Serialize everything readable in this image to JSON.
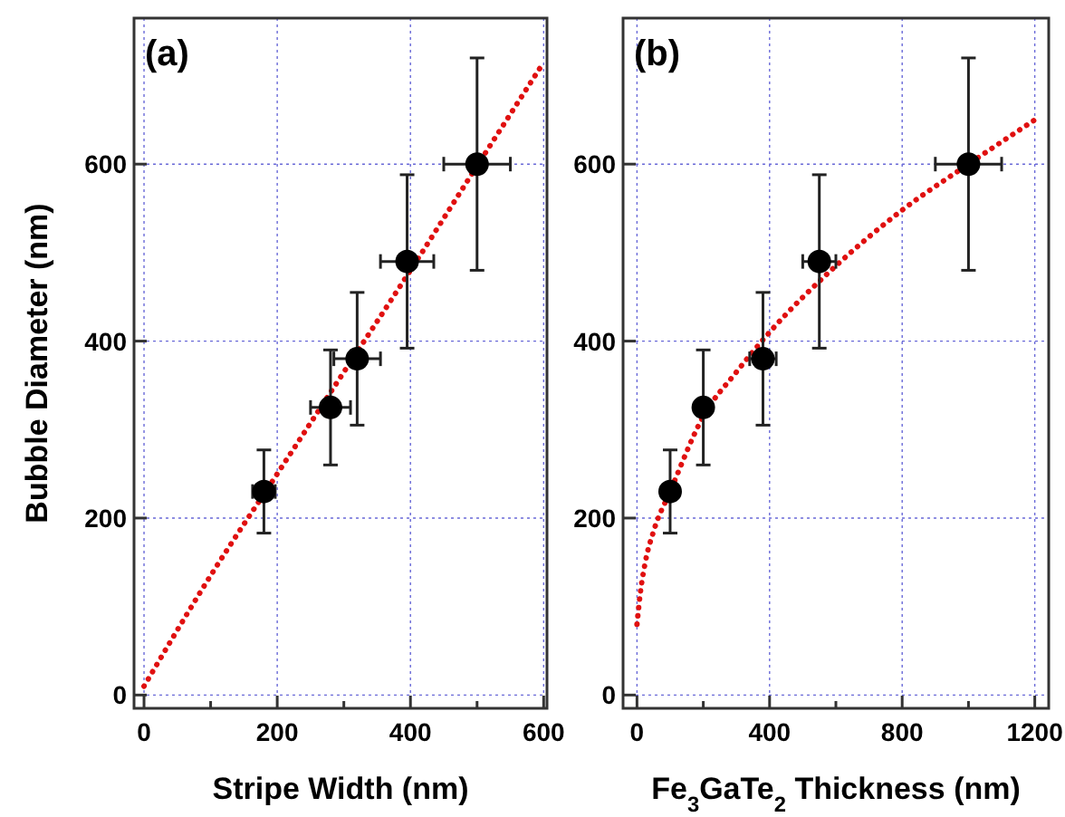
{
  "chart_data": [
    {
      "type": "scatter",
      "title": "(a)",
      "xlabel": "Stripe Width (nm)",
      "ylabel": "Bubble Diameter (nm)",
      "xlim": [
        -15,
        605
      ],
      "ylim": [
        -15,
        765
      ],
      "xticks": [
        0,
        {
          "value": 100,
          "label": null
        },
        200,
        {
          "value": 300,
          "label": null
        },
        400,
        {
          "value": 500,
          "label": null
        },
        600
      ],
      "yticks": [
        0,
        200,
        400,
        600
      ],
      "grid": true,
      "series": [
        {
          "color": "#000000",
          "marker": "circle",
          "x": [
            180,
            280,
            320,
            395,
            500
          ],
          "values": [
            230,
            325,
            380,
            490,
            600
          ],
          "errors": [
            47,
            65,
            75,
            98,
            120
          ],
          "xerrors": [
            17,
            30,
            35,
            40,
            50
          ]
        },
        {
          "type": "line",
          "color": "#e01010",
          "marker": "none",
          "line_style": "dotted",
          "x": [
            0,
            100,
            200,
            300,
            400,
            500,
            600
          ],
          "values": [
            10,
            135,
            250,
            365,
            480,
            598,
            715
          ]
        }
      ]
    },
    {
      "type": "scatter",
      "title": "(b)",
      "xlabel": "Fe$_{3}$GaTe$_{2}$ Thickness (nm)",
      "xlim": [
        -42,
        1242
      ],
      "ylim": [
        -15,
        765
      ],
      "xticks": [
        0,
        {
          "value": 200,
          "label": null
        },
        400,
        {
          "value": 600,
          "label": null
        },
        800,
        {
          "value": 1000,
          "label": null
        },
        1200
      ],
      "yticks": [
        0,
        200,
        400,
        600
      ],
      "grid": true,
      "series": [
        {
          "color": "#000000",
          "marker": "circle",
          "x": [
            100,
            200,
            380,
            550,
            1000
          ],
          "values": [
            230,
            325,
            380,
            490,
            600
          ],
          "errors": [
            47,
            65,
            75,
            98,
            120
          ],
          "xerrors": [
            15,
            10,
            40,
            50,
            100
          ]
        },
        {
          "type": "line",
          "color": "#e01010",
          "marker": "none",
          "line_style": "dotted",
          "x": [
            0,
            10,
            25,
            50,
            100,
            200,
            300,
            400,
            600,
            800,
            1000,
            1200
          ],
          "values": [
            80,
            115,
            150,
            185,
            230,
            315,
            365,
            410,
            485,
            548,
            600,
            650
          ]
        }
      ]
    }
  ]
}
